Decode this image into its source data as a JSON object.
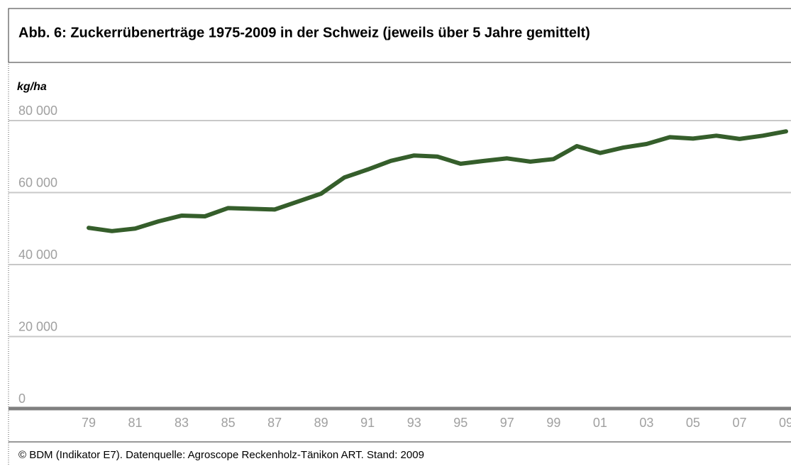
{
  "chart_data": {
    "type": "line",
    "title": "Abb. 6: Zuckerrübenerträge 1975-2009 in der Schweiz (jeweils über 5 Jahre gemittelt)",
    "y_label": "kg/ha",
    "footer": "© BDM (Indikator E7). Datenquelle: Agroscope Reckenholz-Tänikon ART. Stand: 2009",
    "categories": [
      "79",
      null,
      "81",
      null,
      "83",
      null,
      "85",
      null,
      "87",
      null,
      "89",
      null,
      "91",
      null,
      "93",
      null,
      "95",
      null,
      "97",
      null,
      "99",
      null,
      "01",
      null,
      "03",
      null,
      "05",
      null,
      "07",
      null,
      "09"
    ],
    "series": [
      {
        "name": "Zuckerrübenerträge",
        "color": "#355e2b",
        "values": [
          50200,
          49300,
          50000,
          52000,
          53600,
          53400,
          55700,
          55500,
          55300,
          57500,
          59700,
          64200,
          66400,
          68800,
          70300,
          70000,
          68000,
          68800,
          69500,
          68600,
          69300,
          72900,
          71000,
          72500,
          73500,
          75400,
          75000,
          75800,
          74900,
          75800,
          77000
        ]
      }
    ],
    "ylim": [
      0,
      80000
    ],
    "yticks": [
      0,
      {
        "value": 20000,
        "label": "20 000"
      },
      {
        "value": 40000,
        "label": "40 000"
      },
      {
        "value": 60000,
        "label": "60 000"
      },
      {
        "value": 80000,
        "label": "80 000"
      }
    ],
    "grid": true
  }
}
